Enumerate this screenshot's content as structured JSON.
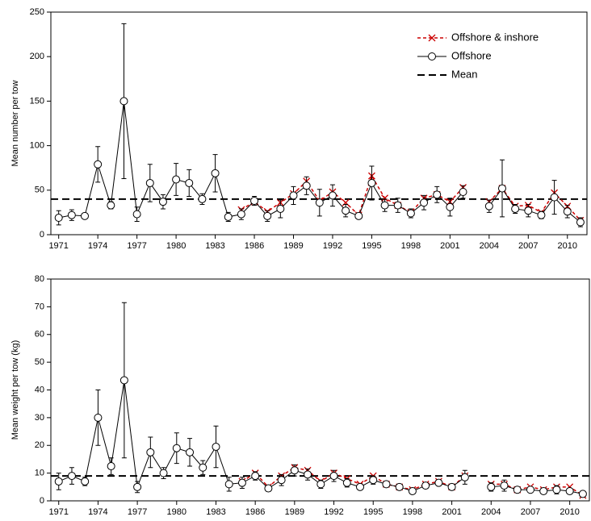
{
  "chart_data": [
    {
      "type": "line",
      "y_label": "Mean number per tow",
      "x": [
        1971,
        1972,
        1973,
        1974,
        1975,
        1976,
        1977,
        1978,
        1979,
        1980,
        1981,
        1982,
        1983,
        1984,
        1985,
        1986,
        1987,
        1988,
        1989,
        1990,
        1991,
        1992,
        1993,
        1994,
        1995,
        1996,
        1997,
        1998,
        1999,
        2000,
        2001,
        2002,
        2003,
        2004,
        2005,
        2006,
        2007,
        2008,
        2009,
        2010,
        2011
      ],
      "xlim": [
        1970.4,
        2011.5
      ],
      "xticks": [
        1971,
        1974,
        1977,
        1980,
        1983,
        1986,
        1989,
        1992,
        1995,
        1998,
        2001,
        2004,
        2007,
        2010
      ],
      "ylim": [
        0,
        250
      ],
      "yticks": [
        0,
        50,
        100,
        150,
        200,
        250
      ],
      "series": [
        {
          "name": "Offshore & inshore",
          "color": "#cc0000",
          "marker": "x",
          "dash": true,
          "values": [
            null,
            null,
            null,
            null,
            null,
            null,
            null,
            null,
            null,
            null,
            null,
            null,
            null,
            null,
            28,
            37,
            26,
            36,
            46,
            60,
            38,
            48,
            36,
            22,
            66,
            41,
            33,
            25,
            41,
            45,
            37,
            53,
            null,
            37,
            52,
            32,
            33,
            25,
            47,
            32,
            16
          ]
        },
        {
          "name": "Offshore",
          "color": "#000000",
          "marker": "circle",
          "dash": false,
          "values": [
            19,
            22,
            21,
            79,
            33,
            150,
            23,
            58,
            37,
            62,
            58,
            40,
            69,
            20,
            23,
            38,
            21,
            29,
            44,
            55,
            36,
            44,
            27,
            21,
            58,
            33,
            33,
            24,
            36,
            45,
            31,
            48,
            null,
            32,
            52,
            29,
            27,
            22,
            42,
            26,
            14
          ],
          "errors": [
            8,
            6,
            0,
            20,
            4,
            87,
            8,
            21,
            8,
            18,
            15,
            6,
            21,
            5,
            6,
            5,
            6,
            10,
            10,
            10,
            15,
            12,
            7,
            3,
            19,
            7,
            8,
            5,
            8,
            9,
            10,
            7,
            null,
            7,
            32,
            5,
            7,
            4,
            19,
            7,
            5
          ]
        }
      ],
      "mean": {
        "name": "Mean",
        "value": 40
      },
      "legend": "top-right"
    },
    {
      "type": "line",
      "y_label": "Mean weight per tow (kg)",
      "x": [
        1971,
        1972,
        1973,
        1974,
        1975,
        1976,
        1977,
        1978,
        1979,
        1980,
        1981,
        1982,
        1983,
        1984,
        1985,
        1986,
        1987,
        1988,
        1989,
        1990,
        1991,
        1992,
        1993,
        1994,
        1995,
        1996,
        1997,
        1998,
        1999,
        2000,
        2001,
        2002,
        2003,
        2004,
        2005,
        2006,
        2007,
        2008,
        2009,
        2010,
        2011
      ],
      "xlim": [
        1970.4,
        2011.5
      ],
      "xticks": [
        1971,
        1974,
        1977,
        1980,
        1983,
        1986,
        1989,
        1992,
        1995,
        1998,
        2001,
        2004,
        2007,
        2010
      ],
      "ylim": [
        0,
        80
      ],
      "yticks": [
        0,
        10,
        20,
        30,
        40,
        50,
        60,
        70,
        80
      ],
      "series": [
        {
          "color": "#cc0000",
          "marker": "x",
          "dash": true,
          "values": [
            null,
            null,
            null,
            null,
            null,
            null,
            null,
            null,
            null,
            null,
            null,
            null,
            null,
            null,
            7,
            10,
            5,
            9,
            12,
            11,
            7,
            10,
            8,
            6,
            9,
            6,
            5,
            4,
            6,
            7,
            5,
            9,
            null,
            6,
            6,
            4,
            5,
            4,
            5,
            5,
            2
          ]
        },
        {
          "color": "#000000",
          "marker": "circle",
          "dash": false,
          "values": [
            7,
            9,
            7,
            30,
            12.5,
            43.5,
            5,
            17.5,
            10,
            19,
            17.5,
            12,
            19.5,
            6,
            6.5,
            9,
            4.5,
            7.5,
            11,
            9.5,
            6,
            9,
            6.5,
            5,
            7.5,
            6,
            5,
            3.5,
            5.5,
            6.5,
            5,
            8.5,
            null,
            5,
            5.5,
            4,
            4,
            3.5,
            4,
            3.5,
            2.5
          ],
          "errors": [
            3,
            3,
            1.5,
            10,
            3,
            28,
            2,
            5.5,
            2,
            5.5,
            5,
            2.5,
            7.5,
            2.5,
            2,
            1.5,
            1,
            2,
            2,
            2,
            1.5,
            2,
            1.5,
            1,
            1.5,
            1,
            1,
            0.5,
            1,
            1,
            1,
            2.5,
            null,
            1.5,
            2,
            1,
            1,
            1,
            1.5,
            1,
            0.5
          ]
        }
      ],
      "mean": {
        "value": 9
      }
    }
  ]
}
